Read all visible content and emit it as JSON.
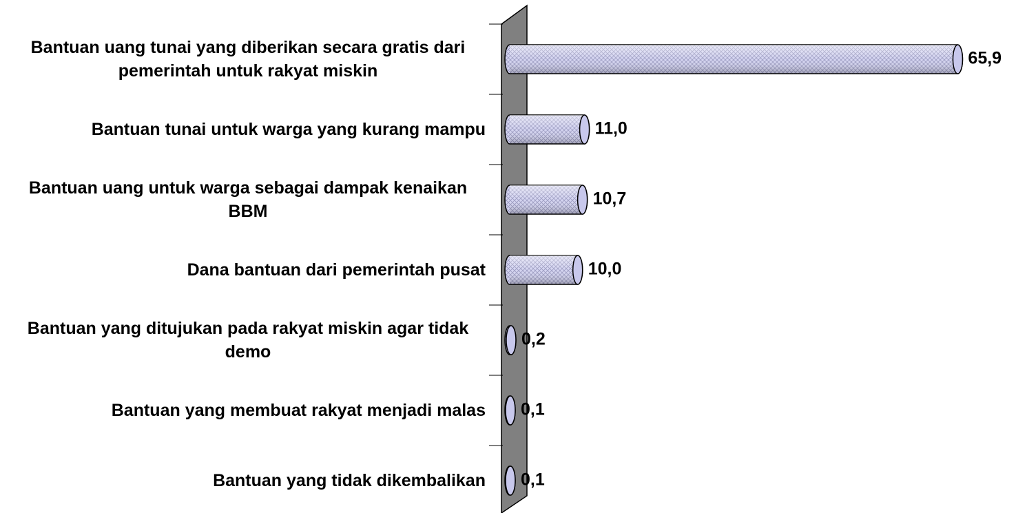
{
  "chart_data": {
    "type": "bar",
    "orientation": "horizontal",
    "categories": [
      "Bantuan uang tunai yang diberikan secara gratis dari pemerintah untuk rakyat miskin",
      "Bantuan tunai untuk warga yang kurang mampu",
      "Bantuan uang untuk warga sebagai dampak kenaikan BBM",
      "Dana bantuan dari pemerintah pusat",
      "Bantuan yang ditujukan pada rakyat miskin agar tidak demo",
      "Bantuan yang membuat rakyat menjadi malas",
      "Bantuan yang tidak dikembalikan"
    ],
    "values": [
      65.9,
      11.0,
      10.7,
      10.0,
      0.2,
      0.1,
      0.1
    ],
    "value_labels": [
      "65,9",
      "11,0",
      "10,7",
      "10,0",
      "0,2",
      "0,1",
      "0,1"
    ],
    "color": "#c8c8ec"
  }
}
